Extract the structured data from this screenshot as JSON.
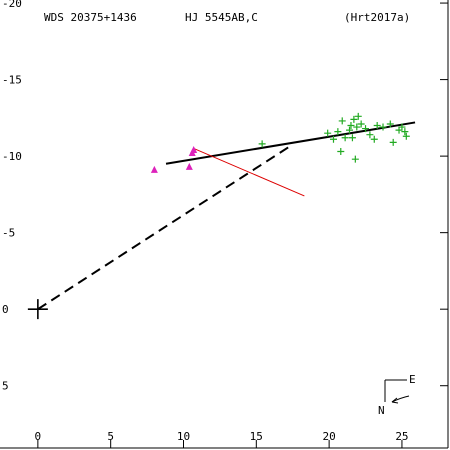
{
  "header": {
    "wds": "WDS 20375+1436",
    "name": "HJ 5545AB,C",
    "ref": "(Hrt2017a)"
  },
  "compass": {
    "east": "E",
    "north": "N"
  },
  "chart_data": {
    "type": "scatter",
    "xlim": [
      -2.6,
      28.3
    ],
    "ylim": [
      -9.2,
      20.2
    ],
    "x_ticks": [
      0,
      5,
      10,
      15,
      20,
      25
    ],
    "y_ticks": [
      -5,
      0,
      5,
      10,
      15,
      20
    ],
    "y_tick_labels": [
      "5",
      "0",
      "-5",
      "-10",
      "-15",
      "-20"
    ],
    "origin": [
      0,
      0
    ],
    "series": [
      {
        "marker": "plus",
        "color": "#22aa22",
        "points": [
          [
            15.4,
            10.8
          ],
          [
            19.9,
            11.5
          ],
          [
            20.3,
            11.1
          ],
          [
            20.6,
            11.6
          ],
          [
            20.8,
            10.3
          ],
          [
            20.9,
            12.3
          ],
          [
            21.1,
            11.2
          ],
          [
            21.4,
            11.7
          ],
          [
            21.5,
            12.0
          ],
          [
            21.6,
            11.2
          ],
          [
            21.7,
            12.4
          ],
          [
            21.8,
            9.8
          ],
          [
            21.9,
            11.9
          ],
          [
            22.0,
            12.6
          ],
          [
            22.2,
            12.1
          ],
          [
            22.5,
            11.8
          ],
          [
            22.8,
            11.4
          ],
          [
            23.1,
            11.1
          ],
          [
            23.3,
            12.0
          ],
          [
            23.7,
            11.9
          ],
          [
            24.2,
            12.1
          ],
          [
            24.4,
            10.9
          ],
          [
            24.8,
            11.7
          ],
          [
            25.0,
            11.9
          ],
          [
            25.2,
            11.6
          ],
          [
            25.3,
            11.3
          ]
        ]
      },
      {
        "marker": "triangle",
        "color": "#dd22bb",
        "points": [
          [
            8.0,
            9.1
          ],
          [
            10.4,
            9.3
          ],
          [
            10.6,
            10.2
          ],
          [
            10.7,
            10.4
          ]
        ]
      }
    ],
    "lines": [
      {
        "style": "solid",
        "color": "#000000",
        "width": 2,
        "points": [
          [
            8.8,
            9.5
          ],
          [
            25.9,
            12.2
          ]
        ]
      },
      {
        "style": "dashed",
        "color": "#000000",
        "width": 2,
        "points": [
          [
            0,
            0
          ],
          [
            17.4,
            10.7
          ]
        ]
      },
      {
        "style": "solid",
        "color": "#dd0000",
        "width": 1,
        "points": [
          [
            10.7,
            10.5
          ],
          [
            18.3,
            7.4
          ]
        ]
      }
    ]
  }
}
